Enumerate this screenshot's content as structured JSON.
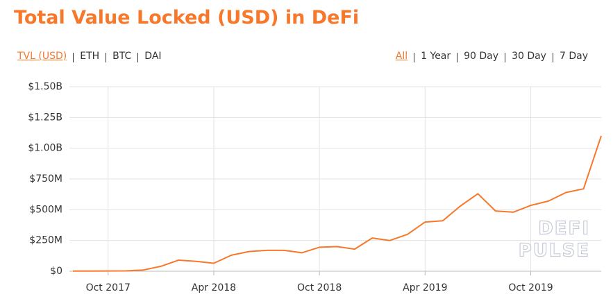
{
  "chart_data": {
    "type": "line",
    "title": "Total Value Locked (USD) in DeFi",
    "x": [
      "2017-08",
      "2017-09",
      "2017-10",
      "2017-11",
      "2017-12",
      "2018-01",
      "2018-02",
      "2018-03",
      "2018-04",
      "2018-05",
      "2018-06",
      "2018-07",
      "2018-08",
      "2018-09",
      "2018-10",
      "2018-11",
      "2018-12",
      "2019-01",
      "2019-02",
      "2019-03",
      "2019-04",
      "2019-05",
      "2019-06",
      "2019-07",
      "2019-08",
      "2019-09",
      "2019-10",
      "2019-11",
      "2019-12",
      "2020-01",
      "2020-02"
    ],
    "values": [
      1000000,
      1000000,
      2000000,
      3000000,
      10000000,
      40000000,
      90000000,
      80000000,
      65000000,
      130000000,
      160000000,
      170000000,
      170000000,
      150000000,
      195000000,
      200000000,
      180000000,
      270000000,
      250000000,
      300000000,
      400000000,
      410000000,
      530000000,
      630000000,
      490000000,
      480000000,
      535000000,
      570000000,
      640000000,
      670000000,
      1100000000
    ],
    "color": "#f7782b",
    "xlim": [
      "2017-08",
      "2020-02"
    ],
    "xticks": [
      {
        "value": "2017-10",
        "label": "Oct 2017"
      },
      {
        "value": "2018-04",
        "label": "Apr 2018"
      },
      {
        "value": "2018-10",
        "label": "Oct 2018"
      },
      {
        "value": "2019-04",
        "label": "Apr 2019"
      },
      {
        "value": "2019-10",
        "label": "Oct 2019"
      }
    ],
    "ylim": [
      0,
      1500000000
    ],
    "yticks": [
      {
        "value": 0,
        "label": "$0"
      },
      {
        "value": 250000000,
        "label": "$250M"
      },
      {
        "value": 500000000,
        "label": "$500M"
      },
      {
        "value": 750000000,
        "label": "$750M"
      },
      {
        "value": 1000000000,
        "label": "$1.00B"
      },
      {
        "value": 1250000000,
        "label": "$1.25B"
      },
      {
        "value": 1500000000,
        "label": "$1.50B"
      }
    ],
    "grid": true
  },
  "metric_tabs": [
    {
      "label": "TVL (USD)",
      "active": true
    },
    {
      "label": "ETH",
      "active": false
    },
    {
      "label": "BTC",
      "active": false
    },
    {
      "label": "DAI",
      "active": false
    }
  ],
  "range_tabs": [
    {
      "label": "All",
      "active": true
    },
    {
      "label": "1 Year",
      "active": false
    },
    {
      "label": "90 Day",
      "active": false
    },
    {
      "label": "30 Day",
      "active": false
    },
    {
      "label": "7 Day",
      "active": false
    }
  ],
  "watermark": [
    "DEFI",
    "PULSE"
  ]
}
